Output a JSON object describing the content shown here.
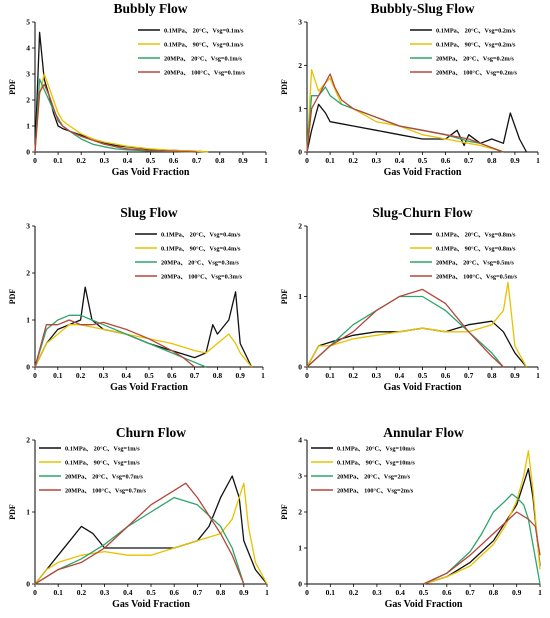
{
  "colors": {
    "black": "#111111",
    "yellow": "#e8c200",
    "green": "#2ea56a",
    "red": "#b5463a"
  },
  "chart_data": [
    {
      "type": "line",
      "title": "Bubbly Flow",
      "xlabel": "Gas Void Fraction",
      "ylabel": "PDF",
      "xlim": [
        0,
        1
      ],
      "ylim": [
        0,
        5
      ],
      "x_ticks": [
        "0",
        "0.1",
        "0.2",
        "0.3",
        "0.4",
        "0.5",
        "0.6",
        "0.7",
        "0.8",
        "0.9",
        "1"
      ],
      "y_ticks": [
        "0",
        "1",
        "2",
        "3",
        "4",
        "5"
      ],
      "grid": false,
      "legend_position": "top-right",
      "series": [
        {
          "name": "0.1MPa、 20°C、Vsg=0.1m/s",
          "color": "#111111",
          "x": [
            0,
            0.02,
            0.04,
            0.06,
            0.08,
            0.1,
            0.12,
            0.15,
            0.2,
            0.25,
            0.3,
            0.35,
            0.4,
            0.5,
            0.6,
            0.7,
            0.75
          ],
          "y": [
            0,
            4.6,
            2.8,
            2.2,
            1.5,
            1.0,
            0.9,
            0.8,
            0.65,
            0.5,
            0.35,
            0.25,
            0.2,
            0.1,
            0.06,
            0.03,
            0
          ]
        },
        {
          "name": "0.1MPa、 90°C、Vsg=0.1m/s",
          "color": "#e8c200",
          "x": [
            0,
            0.02,
            0.04,
            0.06,
            0.08,
            0.1,
            0.12,
            0.15,
            0.2,
            0.25,
            0.3,
            0.35,
            0.4,
            0.5,
            0.6,
            0.7,
            0.75
          ],
          "y": [
            0,
            2.2,
            3.0,
            2.5,
            2.0,
            1.5,
            1.2,
            1.0,
            0.7,
            0.5,
            0.38,
            0.3,
            0.22,
            0.12,
            0.06,
            0.03,
            0
          ]
        },
        {
          "name": "20MPa、 20°C、Vsg=0.1m/s",
          "color": "#2ea56a",
          "x": [
            0,
            0.02,
            0.04,
            0.06,
            0.08,
            0.1,
            0.12,
            0.15,
            0.2,
            0.25,
            0.3,
            0.35,
            0.4,
            0.5,
            0.6,
            0.7
          ],
          "y": [
            0,
            2.8,
            2.4,
            2.0,
            1.6,
            1.3,
            1.0,
            0.8,
            0.5,
            0.3,
            0.2,
            0.12,
            0.08,
            0.04,
            0.02,
            0
          ]
        },
        {
          "name": "20MPa、 100°C、Vsg=0.1m/s",
          "color": "#b5463a",
          "x": [
            0,
            0.02,
            0.04,
            0.06,
            0.08,
            0.1,
            0.12,
            0.15,
            0.2,
            0.25,
            0.3,
            0.35,
            0.4,
            0.5,
            0.6,
            0.7
          ],
          "y": [
            0,
            2.3,
            2.6,
            2.2,
            1.7,
            1.2,
            1.0,
            0.8,
            0.6,
            0.45,
            0.3,
            0.2,
            0.12,
            0.06,
            0.03,
            0
          ]
        }
      ]
    },
    {
      "type": "line",
      "title": "Bubbly-Slug Flow",
      "xlabel": "Gas Void Fraction",
      "ylabel": "PDF",
      "xlim": [
        0,
        1
      ],
      "ylim": [
        0,
        3
      ],
      "x_ticks": [
        "0",
        "0.1",
        "0.2",
        "0.3",
        "0.4",
        "0.5",
        "0.6",
        "0.7",
        "0.8",
        "0.9",
        "1"
      ],
      "y_ticks": [
        "0",
        "1",
        "2",
        "3"
      ],
      "grid": false,
      "legend_position": "top-right",
      "series": [
        {
          "name": "0.1MPa、 20°C、Vsg=0.2m/s",
          "color": "#111111",
          "x": [
            0,
            0.02,
            0.05,
            0.08,
            0.1,
            0.15,
            0.2,
            0.3,
            0.4,
            0.5,
            0.6,
            0.65,
            0.68,
            0.7,
            0.75,
            0.8,
            0.85,
            0.88,
            0.9,
            0.92,
            0.95
          ],
          "y": [
            0,
            0.5,
            1.1,
            0.9,
            0.7,
            0.65,
            0.6,
            0.5,
            0.4,
            0.3,
            0.3,
            0.5,
            0.15,
            0.4,
            0.2,
            0.3,
            0.2,
            0.9,
            0.6,
            0.3,
            0
          ]
        },
        {
          "name": "0.1MPa、 90°C、Vsg=0.2m/s",
          "color": "#e8c200",
          "x": [
            0,
            0.02,
            0.05,
            0.08,
            0.1,
            0.15,
            0.2,
            0.3,
            0.4,
            0.5,
            0.6,
            0.7,
            0.75,
            0.8,
            0.85
          ],
          "y": [
            0,
            1.9,
            1.4,
            1.6,
            1.7,
            1.1,
            1.0,
            0.7,
            0.6,
            0.4,
            0.3,
            0.2,
            0.15,
            0.08,
            0
          ]
        },
        {
          "name": "20MPa、 20°C、Vsg=0.2m/s",
          "color": "#2ea56a",
          "x": [
            0,
            0.02,
            0.05,
            0.08,
            0.1,
            0.15,
            0.2,
            0.25,
            0.3,
            0.4,
            0.5,
            0.6,
            0.7,
            0.75,
            0.8,
            0.85
          ],
          "y": [
            0,
            1.3,
            1.3,
            1.5,
            1.3,
            1.1,
            1.0,
            0.9,
            0.8,
            0.6,
            0.5,
            0.4,
            0.25,
            0.2,
            0.1,
            0
          ]
        },
        {
          "name": "20MPa、 100°C、Vsg=0.2m/s",
          "color": "#b5463a",
          "x": [
            0,
            0.02,
            0.05,
            0.08,
            0.1,
            0.12,
            0.15,
            0.2,
            0.25,
            0.3,
            0.4,
            0.5,
            0.6,
            0.7,
            0.75,
            0.8,
            0.85
          ],
          "y": [
            0,
            1.0,
            1.3,
            1.6,
            1.8,
            1.5,
            1.2,
            1.0,
            0.9,
            0.8,
            0.6,
            0.5,
            0.4,
            0.3,
            0.2,
            0.1,
            0
          ]
        }
      ]
    },
    {
      "type": "line",
      "title": "Slug Flow",
      "xlabel": "Gas Void Fraction",
      "ylabel": "PDF",
      "xlim": [
        0,
        1
      ],
      "ylim": [
        0,
        3
      ],
      "x_ticks": [
        "0",
        "0.1",
        "0.2",
        "0.3",
        "0.4",
        "0.5",
        "0.6",
        "0.7",
        "0.8",
        "0.9",
        "1"
      ],
      "y_ticks": [
        "0",
        "1",
        "2",
        "3"
      ],
      "grid": false,
      "legend_position": "top-right",
      "series": [
        {
          "name": "0.1MPa、 20°C、Vsg=0.4m/s",
          "color": "#111111",
          "x": [
            0,
            0.05,
            0.1,
            0.15,
            0.2,
            0.22,
            0.25,
            0.3,
            0.4,
            0.5,
            0.6,
            0.7,
            0.75,
            0.78,
            0.8,
            0.85,
            0.88,
            0.9,
            0.95
          ],
          "y": [
            0,
            0.5,
            0.8,
            0.9,
            1.0,
            1.7,
            1.0,
            0.8,
            0.7,
            0.5,
            0.35,
            0.2,
            0.3,
            0.9,
            0.7,
            1.0,
            1.6,
            0.5,
            0
          ]
        },
        {
          "name": "0.1MPa、 90°C、Vsg=0.4m/s",
          "color": "#e8c200",
          "x": [
            0,
            0.05,
            0.1,
            0.15,
            0.2,
            0.3,
            0.4,
            0.5,
            0.6,
            0.7,
            0.75,
            0.8,
            0.85,
            0.88,
            0.9,
            0.95
          ],
          "y": [
            0,
            0.5,
            0.7,
            0.9,
            0.9,
            0.8,
            0.7,
            0.6,
            0.5,
            0.35,
            0.3,
            0.5,
            0.7,
            0.5,
            0.3,
            0
          ]
        },
        {
          "name": "20MPa、 20°C、Vsg=0.3m/s",
          "color": "#2ea56a",
          "x": [
            0,
            0.05,
            0.1,
            0.15,
            0.2,
            0.25,
            0.3,
            0.4,
            0.5,
            0.6,
            0.7,
            0.75
          ],
          "y": [
            0,
            0.8,
            1.0,
            1.1,
            1.1,
            1.0,
            0.9,
            0.7,
            0.5,
            0.3,
            0.1,
            0
          ]
        },
        {
          "name": "20MPa、 100°C、Vsg=0.3m/s",
          "color": "#b5463a",
          "x": [
            0,
            0.05,
            0.1,
            0.15,
            0.2,
            0.25,
            0.3,
            0.4,
            0.5,
            0.6,
            0.65,
            0.7
          ],
          "y": [
            0,
            0.9,
            0.9,
            1.0,
            0.9,
            0.9,
            0.95,
            0.8,
            0.6,
            0.35,
            0.2,
            0
          ]
        }
      ]
    },
    {
      "type": "line",
      "title": "Slug-Churn Flow",
      "xlabel": "Gas Void Fraction",
      "ylabel": "PDF",
      "xlim": [
        0,
        1
      ],
      "ylim": [
        0,
        2
      ],
      "x_ticks": [
        "0",
        "0.1",
        "0.2",
        "0.3",
        "0.4",
        "0.5",
        "0.6",
        "0.7",
        "0.8",
        "0.9",
        "1"
      ],
      "y_ticks": [
        "0",
        "1",
        "2"
      ],
      "grid": false,
      "legend_position": "top-right",
      "series": [
        {
          "name": "0.1MPa、 20°C、Vsg=0.8m/s",
          "color": "#111111",
          "x": [
            0,
            0.05,
            0.1,
            0.2,
            0.3,
            0.4,
            0.5,
            0.6,
            0.7,
            0.8,
            0.85,
            0.9,
            0.95
          ],
          "y": [
            0,
            0.3,
            0.35,
            0.45,
            0.5,
            0.5,
            0.55,
            0.5,
            0.6,
            0.65,
            0.5,
            0.2,
            0
          ]
        },
        {
          "name": "0.1MPa、 90°C、Vsg=0.8m/s",
          "color": "#e8c200",
          "x": [
            0,
            0.05,
            0.1,
            0.2,
            0.3,
            0.4,
            0.5,
            0.6,
            0.7,
            0.8,
            0.85,
            0.87,
            0.9,
            0.95
          ],
          "y": [
            0,
            0.3,
            0.3,
            0.4,
            0.45,
            0.5,
            0.55,
            0.5,
            0.5,
            0.6,
            0.8,
            1.2,
            0.3,
            0
          ]
        },
        {
          "name": "20MPa、 20°C、Vsg=0.5m/s",
          "color": "#2ea56a",
          "x": [
            0,
            0.1,
            0.2,
            0.3,
            0.4,
            0.5,
            0.6,
            0.7,
            0.8,
            0.85
          ],
          "y": [
            0,
            0.3,
            0.6,
            0.8,
            1.0,
            1.0,
            0.8,
            0.5,
            0.2,
            0
          ]
        },
        {
          "name": "20MPa、 100°C、Vsg=0.5m/s",
          "color": "#b5463a",
          "x": [
            0,
            0.1,
            0.2,
            0.3,
            0.4,
            0.5,
            0.6,
            0.7,
            0.8,
            0.85
          ],
          "y": [
            0,
            0.3,
            0.5,
            0.8,
            1.0,
            1.1,
            0.9,
            0.5,
            0.15,
            0
          ]
        }
      ]
    },
    {
      "type": "line",
      "title": "Churn Flow",
      "xlabel": "Gas Void Fraction",
      "ylabel": "PDF",
      "xlim": [
        0,
        1
      ],
      "ylim": [
        0,
        2
      ],
      "x_ticks": [
        "0",
        "0.1",
        "0.2",
        "0.3",
        "0.4",
        "0.5",
        "0.6",
        "0.7",
        "0.8",
        "0.9",
        "1"
      ],
      "y_ticks": [
        "0",
        "1",
        "2"
      ],
      "grid": false,
      "legend_position": "top-left",
      "series": [
        {
          "name": "0.1MPa、 20°C、Vsg=1m/s",
          "color": "#111111",
          "x": [
            0,
            0.05,
            0.1,
            0.15,
            0.2,
            0.25,
            0.3,
            0.4,
            0.5,
            0.6,
            0.7,
            0.75,
            0.8,
            0.85,
            0.88,
            0.9,
            0.95,
            1
          ],
          "y": [
            0,
            0.2,
            0.4,
            0.6,
            0.8,
            0.7,
            0.5,
            0.5,
            0.5,
            0.5,
            0.6,
            0.8,
            1.2,
            1.5,
            1.2,
            0.6,
            0.2,
            0
          ]
        },
        {
          "name": "0.1MPa、 90°C、Vsg=1m/s",
          "color": "#e8c200",
          "x": [
            0,
            0.05,
            0.1,
            0.2,
            0.3,
            0.4,
            0.5,
            0.6,
            0.7,
            0.8,
            0.85,
            0.9,
            0.92,
            0.95,
            1
          ],
          "y": [
            0,
            0.2,
            0.3,
            0.4,
            0.45,
            0.4,
            0.4,
            0.5,
            0.6,
            0.7,
            0.9,
            1.4,
            0.8,
            0.3,
            0
          ]
        },
        {
          "name": "20MPa、 20°C、Vsg=0.7m/s",
          "color": "#2ea56a",
          "x": [
            0,
            0.1,
            0.2,
            0.3,
            0.4,
            0.5,
            0.6,
            0.7,
            0.8,
            0.85,
            0.9
          ],
          "y": [
            0,
            0.2,
            0.35,
            0.55,
            0.8,
            1.0,
            1.2,
            1.1,
            0.8,
            0.5,
            0
          ]
        },
        {
          "name": "20MPa、 100°C、Vsg=0.7m/s",
          "color": "#b5463a",
          "x": [
            0,
            0.1,
            0.2,
            0.3,
            0.4,
            0.5,
            0.6,
            0.65,
            0.7,
            0.8,
            0.85,
            0.9
          ],
          "y": [
            0,
            0.2,
            0.3,
            0.5,
            0.8,
            1.1,
            1.3,
            1.4,
            1.2,
            0.7,
            0.4,
            0
          ]
        }
      ]
    },
    {
      "type": "line",
      "title": "Annular Flow",
      "xlabel": "Gas Void Fraction",
      "ylabel": "PDF",
      "xlim": [
        0,
        1
      ],
      "ylim": [
        0,
        4
      ],
      "x_ticks": [
        "0",
        "0.1",
        "0.2",
        "0.3",
        "0.4",
        "0.5",
        "0.6",
        "0.7",
        "0.8",
        "0.9",
        "1"
      ],
      "y_ticks": [
        "0",
        "1",
        "2",
        "3",
        "4"
      ],
      "grid": false,
      "legend_position": "top-left",
      "series": [
        {
          "name": "0.1MPa、 20°C、Vsg=10m/s",
          "color": "#111111",
          "x": [
            0.5,
            0.6,
            0.7,
            0.8,
            0.85,
            0.9,
            0.93,
            0.95,
            0.97,
            1
          ],
          "y": [
            0,
            0.2,
            0.6,
            1.2,
            1.7,
            2.2,
            2.8,
            3.2,
            2.4,
            0.5
          ]
        },
        {
          "name": "0.1MPa、 90°C、Vsg=10m/s",
          "color": "#e8c200",
          "x": [
            0.5,
            0.6,
            0.7,
            0.8,
            0.85,
            0.9,
            0.93,
            0.95,
            0.97,
            1
          ],
          "y": [
            0,
            0.2,
            0.5,
            1.1,
            1.6,
            2.3,
            3.0,
            3.7,
            2.6,
            0.4
          ]
        },
        {
          "name": "20MPa、 20°C、Vsg=2m/s",
          "color": "#2ea56a",
          "x": [
            0.5,
            0.6,
            0.7,
            0.75,
            0.8,
            0.85,
            0.88,
            0.9,
            0.93,
            0.95,
            1
          ],
          "y": [
            0,
            0.3,
            0.9,
            1.4,
            2.0,
            2.3,
            2.5,
            2.4,
            2.2,
            1.8,
            0
          ]
        },
        {
          "name": "20MPa、 100°C、Vsg=2m/s",
          "color": "#b5463a",
          "x": [
            0.5,
            0.6,
            0.7,
            0.8,
            0.85,
            0.9,
            0.95,
            0.98,
            1
          ],
          "y": [
            0,
            0.3,
            0.8,
            1.4,
            1.7,
            2.0,
            1.8,
            1.6,
            0.8
          ]
        }
      ]
    }
  ]
}
